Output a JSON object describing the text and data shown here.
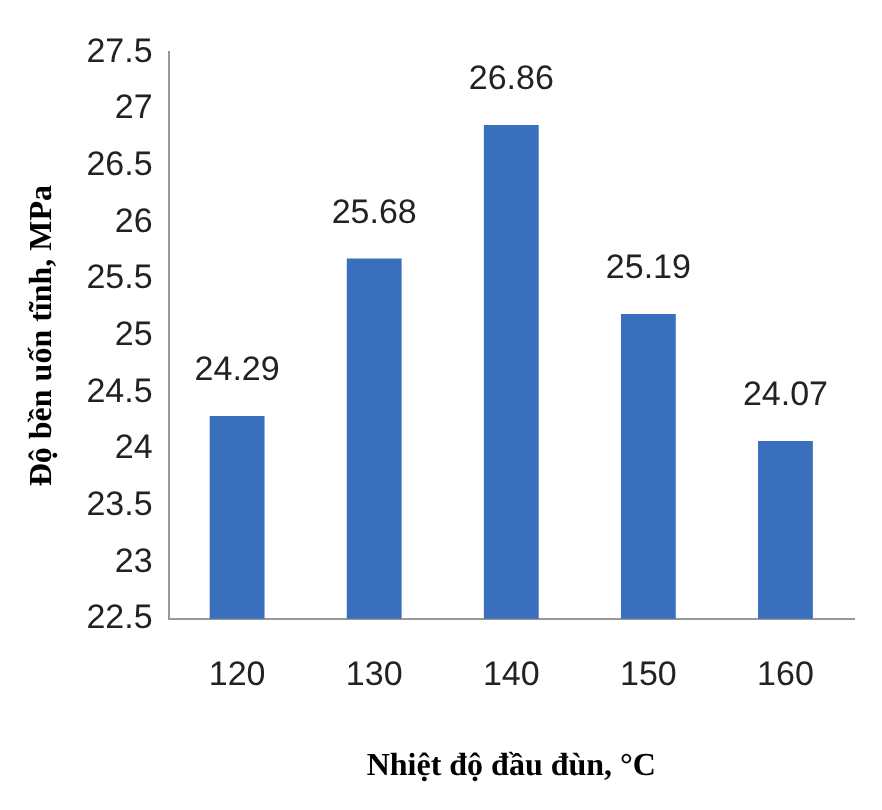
{
  "chart_data": {
    "type": "bar",
    "xlabel": "Nhiệt độ đầu đùn, °C",
    "ylabel": "Độ bền uốn tĩnh, MPa",
    "categories": [
      "120",
      "130",
      "140",
      "150",
      "160"
    ],
    "values": [
      24.29,
      25.68,
      26.86,
      25.19,
      24.07
    ],
    "color": "#3a6fbd",
    "ylim": [
      22.5,
      27.5
    ],
    "yticks": [
      22.5,
      23,
      23.5,
      24,
      24.5,
      25,
      25.5,
      26,
      26.5,
      27,
      27.5
    ],
    "grid": false,
    "data_labels": true
  }
}
